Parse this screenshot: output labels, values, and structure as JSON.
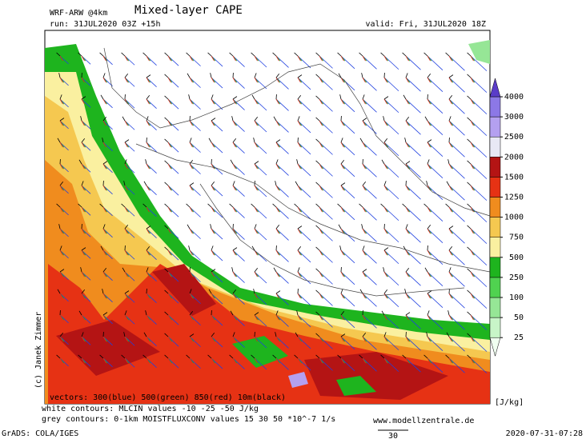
{
  "header": {
    "model": "WRF-ARW @4km",
    "title": "Mixed-layer CAPE",
    "run": "run: 31JUL2020 03Z +15h",
    "valid": "valid: Fri, 31JUL2020 18Z"
  },
  "colorbar": {
    "levels": [
      25,
      50,
      100,
      250,
      500,
      750,
      1000,
      1250,
      1500,
      2000,
      2500,
      3000,
      4000
    ],
    "colors": [
      "#f0fff0",
      "#c8f5c8",
      "#96e696",
      "#50d250",
      "#1eb41e",
      "#faf0a0",
      "#f5c850",
      "#f08c1e",
      "#e63214",
      "#b41414",
      "#e8e8f5",
      "#b4a0f0",
      "#8c78e6",
      "#5a3cc8"
    ],
    "unit": "[J/kg]"
  },
  "credit": "(c) Janek Zimmer",
  "legend": {
    "vectors": "vectors: 300(blue) 500(green) 850(red) 10m(black)",
    "white": "white contours: MLCIN values -10 -25 -50 J/kg",
    "grey": "grey contours: 0-1km MOISTFLUXCONV values 15 30 50 *10^-7 1/s",
    "website": "www.modellzentrale.de",
    "scale": "30"
  },
  "footer": {
    "software": "GrADS: COLA/IGES",
    "timestamp": "2020-07-31-07:28"
  }
}
